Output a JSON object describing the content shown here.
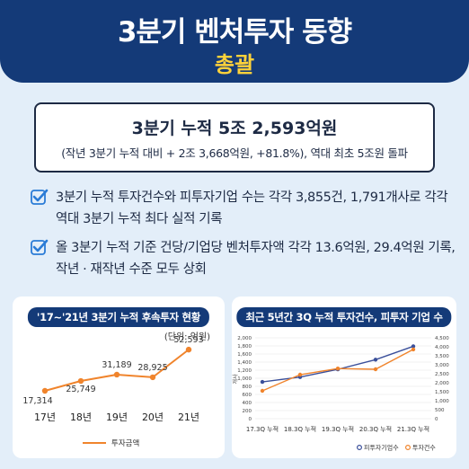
{
  "header": {
    "title": "3분기 벤처투자 동향",
    "subtitle": "총괄"
  },
  "summary": {
    "main": "3분기 누적 5조 2,593억원",
    "sub": "(작년 3분기 누적 대비 + 2조 3,668억원, +81.8%), 역대 최초 5조원 돌파"
  },
  "bullets": [
    {
      "text": "3분기 누적 투자건수와 피투자기업 수는 각각 3,855건, 1,791개사로 각각 역대 3분기 누적 최다 실적 기록",
      "icon": "check-icon"
    },
    {
      "text": "올 3분기 누적 기준 건당/기업당 벤처투자액 각각 13.6억원, 29.4억원 기록, 작년 · 재작년 수준 모두 상회",
      "icon": "check-icon"
    }
  ],
  "colors": {
    "navy": "#143a78",
    "yellow": "#ffd23a",
    "orange": "#f0842c",
    "blue": "#3a4f9a",
    "bg": "#e3eef9"
  },
  "chart_data": [
    {
      "type": "line",
      "title": "'17~'21년 3분기 누적 후속투자 현황",
      "unit": "(단위: 억원)",
      "categories": [
        "17년",
        "18년",
        "19년",
        "20년",
        "21년"
      ],
      "series": [
        {
          "name": "투자금액",
          "values": [
            17314,
            25749,
            31189,
            28925,
            52593
          ],
          "labels": [
            "17,314",
            "25,749",
            "31,189",
            "28,925",
            "52,593"
          ]
        }
      ],
      "legend_position": "bottom",
      "grid": false
    },
    {
      "type": "line",
      "title": "최근 5년간 3Q 누적 투자건수, 피투자 기업 수",
      "categories": [
        "17.3Q 누적",
        "18.3Q 누적",
        "19.3Q 누적",
        "20.3Q 누적",
        "21.3Q 누적"
      ],
      "y_left": {
        "label": "개사",
        "ticks": [
          "2,000",
          "1,800",
          "1,600",
          "1,400",
          "1,200",
          "1,000",
          "800",
          "600",
          "400",
          "200",
          "0"
        ],
        "range": [
          0,
          2000
        ]
      },
      "y_right": {
        "ticks": [
          "4,500",
          "4,000",
          "3,500",
          "3,000",
          "2,500",
          "2,000",
          "1,500",
          "1,000",
          "500",
          "0"
        ],
        "range": [
          0,
          4500
        ]
      },
      "series": [
        {
          "name": "피투자기업수",
          "axis": "left",
          "values": [
            910,
            1030,
            1220,
            1460,
            1791
          ]
        },
        {
          "name": "투자건수",
          "axis": "right",
          "values": [
            1550,
            2450,
            2790,
            2750,
            3855
          ]
        }
      ],
      "legend_position": "bottom",
      "grid": true
    }
  ]
}
